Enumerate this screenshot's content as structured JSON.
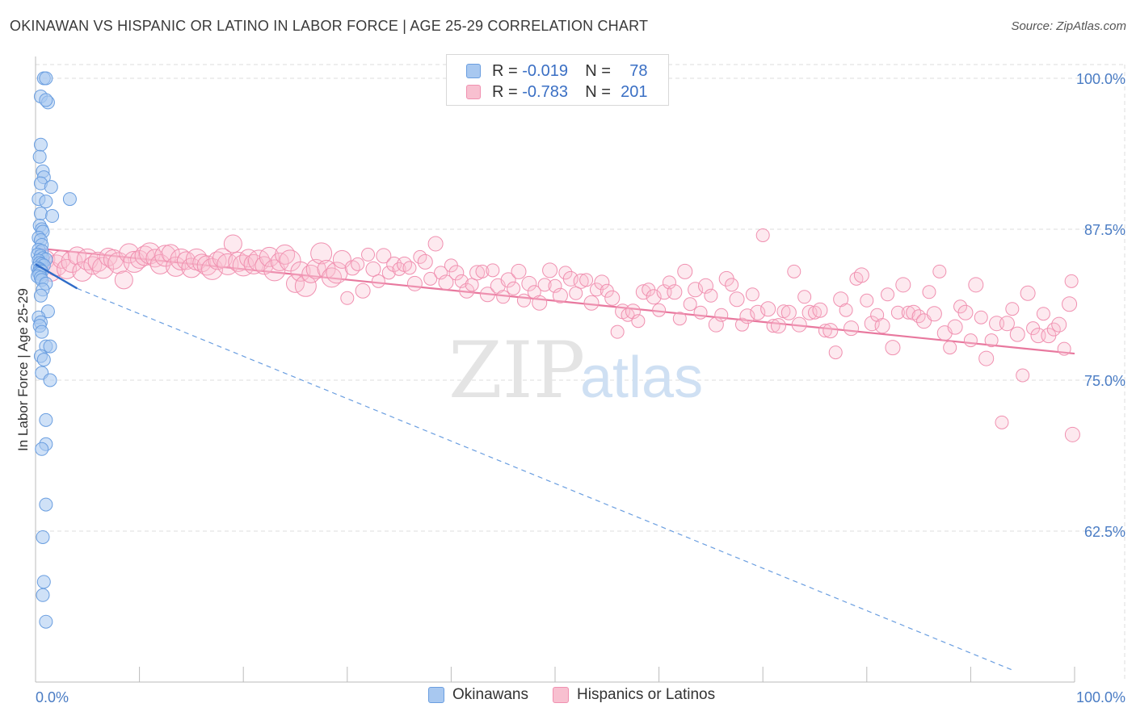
{
  "header": {
    "title": "OKINAWAN VS HISPANIC OR LATINO IN LABOR FORCE | AGE 25-29 CORRELATION CHART",
    "source": "Source: ZipAtlas.com"
  },
  "legend": {
    "r_label": "R =",
    "n_label": "N =",
    "rows": [
      {
        "r": "-0.019",
        "n": "78",
        "color": "#a8c8f0",
        "border": "#6a9ee0"
      },
      {
        "r": "-0.783",
        "n": "201",
        "color": "#f8c0d0",
        "border": "#f090b0"
      }
    ]
  },
  "bottom_legend": [
    {
      "label": "Okinawans",
      "color": "#a8c8f0",
      "border": "#6a9ee0"
    },
    {
      "label": "Hispanics or Latinos",
      "color": "#f8c0d0",
      "border": "#f090b0"
    }
  ],
  "watermark": {
    "zip": "ZIP",
    "atlas": "atlas"
  },
  "chart_data": {
    "type": "scatter",
    "xlabel": "",
    "ylabel": "In Labor Force | Age 25-29",
    "xlim": [
      0,
      100
    ],
    "ylim": [
      50,
      102
    ],
    "y_ticks": [
      {
        "value": 100,
        "label": "100.0%"
      },
      {
        "value": 87.5,
        "label": "87.5%"
      },
      {
        "value": 75,
        "label": "75.0%"
      },
      {
        "value": 62.5,
        "label": "62.5%"
      }
    ],
    "x_tick_labels": [
      {
        "value": 0,
        "label": "0.0%"
      },
      {
        "value": 100,
        "label": "100.0%"
      }
    ],
    "grid": true,
    "colors": {
      "okinawans": "#6a9ee0",
      "hispanics": "#e8789e",
      "grid": "#dddddd"
    },
    "series": [
      {
        "name": "Okinawans",
        "trend": {
          "x": [
            0,
            4
          ],
          "y": [
            84.6,
            82.6
          ]
        },
        "trend_dashed": {
          "x": [
            4,
            94
          ],
          "y": [
            82.6,
            51.0
          ]
        },
        "points": [
          [
            0.8,
            100
          ],
          [
            1,
            100
          ],
          [
            0.5,
            98.5
          ],
          [
            1.2,
            98
          ],
          [
            1,
            98.2
          ],
          [
            0.5,
            94.5
          ],
          [
            0.4,
            93.5
          ],
          [
            0.7,
            92.3
          ],
          [
            0.8,
            91.8
          ],
          [
            0.5,
            91.3
          ],
          [
            1.5,
            91
          ],
          [
            0.3,
            90
          ],
          [
            1,
            89.8
          ],
          [
            3.3,
            90
          ],
          [
            0.5,
            88.8
          ],
          [
            1.6,
            88.6
          ],
          [
            0.4,
            87.8
          ],
          [
            0.6,
            87.5
          ],
          [
            0.7,
            87.3
          ],
          [
            0.3,
            86.8
          ],
          [
            0.5,
            86.6
          ],
          [
            0.6,
            86.2
          ],
          [
            0.3,
            85.8
          ],
          [
            0.6,
            85.7
          ],
          [
            0.2,
            85.4
          ],
          [
            0.5,
            85.3
          ],
          [
            0.7,
            85.1
          ],
          [
            1,
            85
          ],
          [
            0.3,
            84.9
          ],
          [
            0.4,
            84.7
          ],
          [
            0.6,
            84.6
          ],
          [
            0.8,
            84.5
          ],
          [
            0.2,
            84.3
          ],
          [
            0.4,
            84.2
          ],
          [
            0.5,
            84.1
          ],
          [
            0.6,
            84
          ],
          [
            0.3,
            83.9
          ],
          [
            0.4,
            83.8
          ],
          [
            0.2,
            83.6
          ],
          [
            0.5,
            83.5
          ],
          [
            0.6,
            83.3
          ],
          [
            1,
            83
          ],
          [
            0.7,
            82.5
          ],
          [
            0.5,
            82
          ],
          [
            1.2,
            80.7
          ],
          [
            0.3,
            80.2
          ],
          [
            0.5,
            79.8
          ],
          [
            0.4,
            79.5
          ],
          [
            0.6,
            79
          ],
          [
            1,
            77.8
          ],
          [
            1.4,
            77.8
          ],
          [
            0.5,
            77
          ],
          [
            0.8,
            76.7
          ],
          [
            0.6,
            75.6
          ],
          [
            1.4,
            75
          ],
          [
            1,
            71.7
          ],
          [
            1,
            69.7
          ],
          [
            0.6,
            69.3
          ],
          [
            1,
            64.7
          ],
          [
            0.7,
            62
          ],
          [
            0.8,
            58.3
          ],
          [
            0.7,
            57.2
          ],
          [
            1,
            55
          ]
        ]
      },
      {
        "name": "Hispanics or Latinos",
        "trend": {
          "x": [
            0.5,
            100
          ],
          "y": [
            85.9,
            77.2
          ]
        },
        "points": [
          [
            1,
            85
          ],
          [
            1.5,
            84
          ],
          [
            2,
            84.5
          ],
          [
            2.5,
            85
          ],
          [
            3,
            84.2
          ],
          [
            3.5,
            84.8
          ],
          [
            4,
            85.3
          ],
          [
            4.5,
            84
          ],
          [
            5,
            85
          ],
          [
            5.5,
            84.5
          ],
          [
            6,
            84.8
          ],
          [
            6.5,
            84.3
          ],
          [
            7,
            85.2
          ],
          [
            7.5,
            85
          ],
          [
            8,
            84.7
          ],
          [
            8.5,
            83.3
          ],
          [
            9,
            85.5
          ],
          [
            9.5,
            84.8
          ],
          [
            10,
            85
          ],
          [
            10.5,
            85.3
          ],
          [
            11,
            85.5
          ],
          [
            11.5,
            85.1
          ],
          [
            12,
            84.6
          ],
          [
            12.5,
            85.3
          ],
          [
            13,
            85.5
          ],
          [
            13.5,
            84.4
          ],
          [
            14,
            85
          ],
          [
            14.5,
            84.9
          ],
          [
            15,
            84.3
          ],
          [
            15.5,
            85
          ],
          [
            16,
            84.7
          ],
          [
            16.5,
            84.5
          ],
          [
            17,
            84.2
          ],
          [
            17.5,
            84.9
          ],
          [
            18,
            85.1
          ],
          [
            18.5,
            84.6
          ],
          [
            19,
            86.3
          ],
          [
            19.5,
            84.8
          ],
          [
            20,
            84.5
          ],
          [
            20.5,
            85.1
          ],
          [
            21,
            84.6
          ],
          [
            21.5,
            84.9
          ],
          [
            22,
            84.5
          ],
          [
            22.5,
            85.2
          ],
          [
            23,
            84.1
          ],
          [
            23.5,
            84.8
          ],
          [
            24,
            85.4
          ],
          [
            24.5,
            84.9
          ],
          [
            25,
            83
          ],
          [
            25.5,
            84
          ],
          [
            26,
            82.8
          ],
          [
            26.5,
            83.8
          ],
          [
            27,
            84.2
          ],
          [
            27.5,
            85.5
          ],
          [
            28,
            84.2
          ],
          [
            28.5,
            83.5
          ],
          [
            29,
            83.9
          ],
          [
            29.5,
            85
          ],
          [
            30,
            81.8
          ],
          [
            30.5,
            84.3
          ],
          [
            31,
            84.6
          ],
          [
            31.5,
            82.4
          ],
          [
            32,
            85.4
          ],
          [
            32.5,
            84.2
          ],
          [
            33,
            83.2
          ],
          [
            33.5,
            85.3
          ],
          [
            34,
            83.9
          ],
          [
            34.5,
            84.6
          ],
          [
            35,
            84.2
          ],
          [
            35.5,
            84.6
          ],
          [
            36,
            84.3
          ],
          [
            36.5,
            83
          ],
          [
            37,
            85.2
          ],
          [
            37.5,
            84.8
          ],
          [
            38,
            83.4
          ],
          [
            38.5,
            86.3
          ],
          [
            39,
            83.9
          ],
          [
            39.5,
            83.1
          ],
          [
            40,
            84.5
          ],
          [
            40.5,
            83.9
          ],
          [
            41,
            83.2
          ],
          [
            41.5,
            82.4
          ],
          [
            42,
            82.9
          ],
          [
            42.5,
            83.9
          ],
          [
            43,
            84
          ],
          [
            43.5,
            82.1
          ],
          [
            44,
            84.1
          ],
          [
            44.5,
            82.8
          ],
          [
            45,
            81.9
          ],
          [
            45.5,
            83.3
          ],
          [
            46,
            82.6
          ],
          [
            46.5,
            84
          ],
          [
            47,
            81.6
          ],
          [
            47.5,
            83
          ],
          [
            48,
            82.3
          ],
          [
            48.5,
            81.4
          ],
          [
            49,
            82.9
          ],
          [
            49.5,
            84.1
          ],
          [
            50,
            82.8
          ],
          [
            50.5,
            82
          ],
          [
            51,
            83.9
          ],
          [
            51.5,
            83.4
          ],
          [
            52,
            82.2
          ],
          [
            52.5,
            83.2
          ],
          [
            53,
            83.3
          ],
          [
            53.5,
            81.4
          ],
          [
            54,
            82.5
          ],
          [
            54.5,
            83.1
          ],
          [
            55,
            82.4
          ],
          [
            55.5,
            81.8
          ],
          [
            56,
            79
          ],
          [
            56.5,
            80.7
          ],
          [
            57,
            80.4
          ],
          [
            57.5,
            80.7
          ],
          [
            58,
            79.9
          ],
          [
            58.5,
            82.3
          ],
          [
            59,
            82.5
          ],
          [
            59.5,
            81.9
          ],
          [
            60,
            80.8
          ],
          [
            60.5,
            82.3
          ],
          [
            61,
            83.1
          ],
          [
            61.5,
            82.3
          ],
          [
            62,
            80.1
          ],
          [
            62.5,
            84
          ],
          [
            63,
            81.3
          ],
          [
            63.5,
            82.5
          ],
          [
            64,
            80.6
          ],
          [
            64.5,
            82.8
          ],
          [
            65,
            82
          ],
          [
            65.5,
            79.6
          ],
          [
            66,
            80.4
          ],
          [
            66.5,
            83.4
          ],
          [
            67,
            82.9
          ],
          [
            67.5,
            81.7
          ],
          [
            68,
            79.6
          ],
          [
            68.5,
            80.3
          ],
          [
            69,
            82.1
          ],
          [
            69.5,
            80.6
          ],
          [
            70,
            87
          ],
          [
            70.5,
            80.9
          ],
          [
            71,
            79.5
          ],
          [
            71.5,
            79.5
          ],
          [
            72,
            80.7
          ],
          [
            72.5,
            80.6
          ],
          [
            73,
            84
          ],
          [
            73.5,
            79.6
          ],
          [
            74,
            81.9
          ],
          [
            74.5,
            80.6
          ],
          [
            75,
            80.6
          ],
          [
            75.5,
            80.8
          ],
          [
            76,
            79.1
          ],
          [
            76.5,
            79.1
          ],
          [
            77,
            77.3
          ],
          [
            77.5,
            81.7
          ],
          [
            78,
            80.8
          ],
          [
            78.5,
            79.3
          ],
          [
            79,
            83.4
          ],
          [
            79.5,
            83.7
          ],
          [
            80,
            81.6
          ],
          [
            80.5,
            79.7
          ],
          [
            81,
            80.4
          ],
          [
            81.5,
            79.5
          ],
          [
            82,
            82.1
          ],
          [
            82.5,
            77.7
          ],
          [
            83,
            80.6
          ],
          [
            83.5,
            82.9
          ],
          [
            84,
            80.6
          ],
          [
            84.5,
            80.6
          ],
          [
            85,
            80.3
          ],
          [
            85.5,
            79.9
          ],
          [
            86,
            82.3
          ],
          [
            86.5,
            80.5
          ],
          [
            87,
            84
          ],
          [
            87.5,
            78.9
          ],
          [
            88,
            77.7
          ],
          [
            88.5,
            79.4
          ],
          [
            89,
            81.1
          ],
          [
            89.5,
            80.6
          ],
          [
            90,
            78.3
          ],
          [
            90.5,
            82.9
          ],
          [
            91,
            80.2
          ],
          [
            91.5,
            76.8
          ],
          [
            92,
            78.3
          ],
          [
            92.5,
            79.7
          ],
          [
            93,
            71.5
          ],
          [
            93.5,
            79.7
          ],
          [
            94,
            80.9
          ],
          [
            94.5,
            78.8
          ],
          [
            95,
            75.4
          ],
          [
            95.5,
            82.2
          ],
          [
            96,
            79.3
          ],
          [
            96.5,
            78.7
          ],
          [
            97,
            80.5
          ],
          [
            97.5,
            78.7
          ],
          [
            98,
            79.2
          ],
          [
            98.5,
            79.6
          ],
          [
            99,
            77.6
          ],
          [
            99.5,
            81.3
          ],
          [
            99.7,
            83.2
          ],
          [
            99.8,
            70.5
          ]
        ]
      }
    ]
  }
}
